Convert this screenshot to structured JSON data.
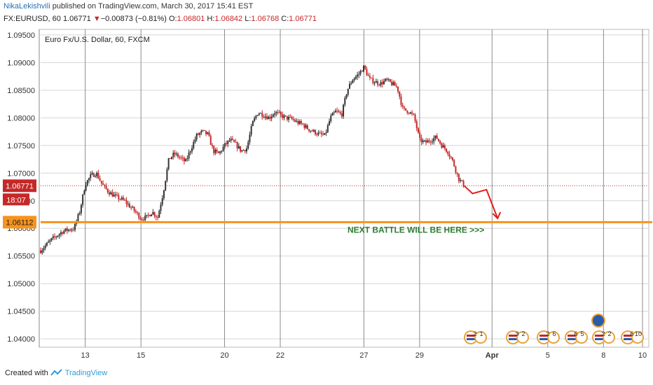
{
  "header": {
    "author": "NikaLekishvili",
    "published": "published on TradingView.com, March 30, 2017 15:41 EST",
    "symbol": "FX:EURUSD, 60",
    "last": "1.06771",
    "change_arrow": "▼",
    "change": "−0.00873 (−0.81%)",
    "o_label": "O:",
    "o": "1.06801",
    "h_label": "H:",
    "h": "1.06842",
    "l_label": "L:",
    "l": "1.06768",
    "c_label": "C:",
    "c": "1.06771"
  },
  "chart_data": {
    "type": "candlestick",
    "title": "Euro Fx/U.S. Dollar, 60, FXCM",
    "xlabel": "",
    "ylabel": "",
    "ylim": [
      1.0385,
      1.096
    ],
    "yticks": [
      "1.09500",
      "1.09000",
      "1.08500",
      "1.08000",
      "1.07500",
      "1.07000",
      "1.06500",
      "1.06000",
      "1.05500",
      "1.05000",
      "1.04500",
      "1.04000"
    ],
    "xticks": [
      "13",
      "15",
      "20",
      "22",
      "27",
      "29",
      "Apr",
      "5",
      "8",
      "10"
    ],
    "grid": true,
    "price_path": [
      [
        0,
        1.056
      ],
      [
        2,
        1.058
      ],
      [
        4,
        1.0595
      ],
      [
        6,
        1.06
      ],
      [
        7,
        1.063
      ],
      [
        8,
        1.068
      ],
      [
        9,
        1.0695
      ],
      [
        10,
        1.07
      ],
      [
        11,
        1.068
      ],
      [
        12,
        1.0668
      ],
      [
        13,
        1.066
      ],
      [
        14,
        1.0655
      ],
      [
        15,
        1.065
      ],
      [
        16,
        1.064
      ],
      [
        17,
        1.063
      ],
      [
        18,
        1.0618
      ],
      [
        19,
        1.062
      ],
      [
        20,
        1.063
      ],
      [
        21,
        1.062
      ],
      [
        22,
        1.0665
      ],
      [
        23,
        1.0725
      ],
      [
        24,
        1.0735
      ],
      [
        25,
        1.0728
      ],
      [
        26,
        1.072
      ],
      [
        27,
        1.0745
      ],
      [
        28,
        1.0768
      ],
      [
        29,
        1.0775
      ],
      [
        30,
        1.077
      ],
      [
        31,
        1.074
      ],
      [
        32,
        1.0735
      ],
      [
        33,
        1.075
      ],
      [
        34,
        1.076
      ],
      [
        35,
        1.0752
      ],
      [
        36,
        1.074
      ],
      [
        37,
        1.0745
      ],
      [
        38,
        1.079
      ],
      [
        39,
        1.081
      ],
      [
        40,
        1.0805
      ],
      [
        41,
        1.08
      ],
      [
        42,
        1.081
      ],
      [
        43,
        1.0805
      ],
      [
        44,
        1.08
      ],
      [
        45,
        1.0798
      ],
      [
        46,
        1.0792
      ],
      [
        47,
        1.0788
      ],
      [
        48,
        1.078
      ],
      [
        49,
        1.0775
      ],
      [
        50,
        1.077
      ],
      [
        51,
        1.0768
      ],
      [
        52,
        1.08
      ],
      [
        53,
        1.0812
      ],
      [
        54,
        1.0805
      ],
      [
        55,
        1.085
      ],
      [
        56,
        1.087
      ],
      [
        57,
        1.0878
      ],
      [
        58,
        1.0892
      ],
      [
        59,
        1.087
      ],
      [
        60,
        1.0865
      ],
      [
        61,
        1.0862
      ],
      [
        62,
        1.0868
      ],
      [
        63,
        1.0862
      ],
      [
        64,
        1.0855
      ],
      [
        65,
        1.0815
      ],
      [
        66,
        1.0812
      ],
      [
        67,
        1.0802
      ],
      [
        68,
        1.076
      ],
      [
        69,
        1.0755
      ],
      [
        70,
        1.076
      ],
      [
        71,
        1.0765
      ],
      [
        72,
        1.075
      ],
      [
        73,
        1.074
      ],
      [
        74,
        1.072
      ],
      [
        75,
        1.069
      ],
      [
        76,
        1.0677
      ]
    ],
    "projection": [
      [
        76,
        1.0677
      ],
      [
        77.5,
        1.0663
      ],
      [
        80,
        1.067
      ],
      [
        82,
        1.0618
      ]
    ],
    "price_line": {
      "value": 1.06771,
      "label": "1.06771",
      "countdown": "18:07",
      "color": "#c62828"
    },
    "support_line": {
      "value": 1.06112,
      "label": "1.06112",
      "color": "#f7931e"
    },
    "annotations": [
      {
        "text": "NEXT BATTLE WILL BE HERE  >>>",
        "color": "#2e7d32"
      }
    ],
    "events": [
      {
        "values": [
          "2",
          "1"
        ]
      },
      {
        "values": [
          "3",
          "2"
        ]
      },
      {
        "values": [
          "2",
          "6"
        ]
      },
      {
        "values": [
          "6",
          "5"
        ]
      },
      {
        "values": [
          "2",
          "2"
        ]
      },
      {
        "values": [
          "6",
          "10"
        ]
      }
    ],
    "colors": {
      "up": "#333333",
      "down": "#c62828",
      "grid": "#d6d6d6"
    }
  },
  "footer": {
    "created": "Created with",
    "brand": "TradingView"
  }
}
